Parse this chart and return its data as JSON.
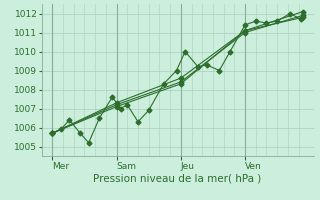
{
  "title": "",
  "xlabel": "Pression niveau de la mer( hPa )",
  "background_color": "#cceedd",
  "grid_color": "#aaccbb",
  "line_color": "#2d6e2d",
  "vline_color": "#8aaa9a",
  "ylim": [
    1004.5,
    1012.5
  ],
  "yticks": [
    1005,
    1006,
    1007,
    1008,
    1009,
    1010,
    1011,
    1012
  ],
  "xlim": [
    -0.5,
    12.2
  ],
  "day_labels": [
    "Mer",
    "Sam",
    "Jeu",
    "Ven"
  ],
  "day_positions": [
    0.0,
    3.0,
    6.0,
    9.0
  ],
  "series": [
    [
      0.0,
      1005.7,
      0.4,
      1005.9,
      0.8,
      1006.4,
      1.3,
      1005.7,
      1.7,
      1005.2,
      2.2,
      1006.5,
      2.8,
      1007.6,
      3.2,
      1007.0,
      3.5,
      1007.2,
      4.0,
      1006.3,
      4.5,
      1006.9,
      5.2,
      1008.3,
      5.8,
      1009.0,
      6.2,
      1010.0,
      6.8,
      1009.2,
      7.2,
      1009.3,
      7.8,
      1009.0,
      8.3,
      1010.0,
      9.0,
      1011.4,
      9.5,
      1011.6,
      10.0,
      1011.5,
      10.5,
      1011.6,
      11.1,
      1012.0,
      11.6,
      1011.7
    ],
    [
      0.0,
      1005.7,
      3.0,
      1007.1,
      6.0,
      1008.3,
      9.0,
      1011.1,
      11.7,
      1011.8
    ],
    [
      0.0,
      1005.7,
      3.0,
      1007.3,
      6.0,
      1008.6,
      9.0,
      1011.1,
      11.7,
      1012.1
    ],
    [
      0.0,
      1005.7,
      3.0,
      1007.2,
      6.0,
      1008.4,
      9.0,
      1011.0,
      11.7,
      1011.9
    ]
  ],
  "xlabel_fontsize": 7.5,
  "tick_fontsize": 6.5,
  "marker_size": 2.5,
  "linewidth": 0.8
}
